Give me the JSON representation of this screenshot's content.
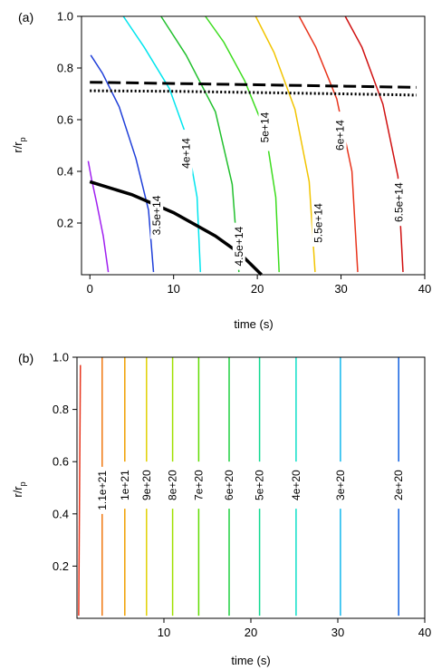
{
  "chart_data": [
    {
      "type": "line",
      "panel_label": "(a)",
      "xlabel": "time (s)",
      "ylabel": "r/r",
      "ylabel_subscript": "p",
      "xlim": [
        -1,
        40
      ],
      "ylim": [
        0,
        1.0
      ],
      "xticks": [
        0,
        10,
        20,
        30,
        40
      ],
      "xtick_labels": [
        "0",
        "10",
        "20",
        "30",
        "40"
      ],
      "yticks": [
        0.2,
        0.4,
        0.6,
        0.8,
        1.0
      ],
      "ytick_labels": [
        "0.2",
        "0.4",
        "0.6",
        "0.8",
        "1.0"
      ],
      "grid": false,
      "contours": [
        {
          "label": "",
          "color": "#a020f0",
          "x": [
            -0.2,
            0.2,
            0.8,
            1.6,
            2.2
          ],
          "y": [
            0.44,
            0.37,
            0.28,
            0.15,
            0.01
          ],
          "label_at": null
        },
        {
          "label": "3.5e+14",
          "color": "#1f3fd9",
          "x": [
            0.1,
            1.5,
            3.5,
            5.5,
            7.0,
            7.6
          ],
          "y": [
            0.85,
            0.78,
            0.65,
            0.45,
            0.25,
            0.01
          ],
          "label_at": [
            8.0,
            0.23
          ]
        },
        {
          "label": "4e+14",
          "color": "#00e5ee",
          "x": [
            4.0,
            6.5,
            9.5,
            11.5,
            12.8,
            13.2
          ],
          "y": [
            1.0,
            0.88,
            0.72,
            0.54,
            0.3,
            0.01
          ],
          "label_at": [
            11.5,
            0.47
          ]
        },
        {
          "label": "4.5e+14",
          "color": "#22c02e",
          "x": [
            8.5,
            11.5,
            15.0,
            17.0,
            17.8
          ],
          "y": [
            1.0,
            0.85,
            0.63,
            0.35,
            0.01
          ],
          "label_at": [
            17.8,
            0.11
          ]
        },
        {
          "label": "5e+14",
          "color": "#3cdc1e",
          "x": [
            13.8,
            16.0,
            18.5,
            21.0,
            22.2,
            22.6
          ],
          "y": [
            1.0,
            0.9,
            0.75,
            0.55,
            0.3,
            0.01
          ],
          "label_at": [
            20.9,
            0.57
          ]
        },
        {
          "label": "5.5e+14",
          "color": "#f2c400",
          "x": [
            19.8,
            22.0,
            24.5,
            26.2,
            26.9
          ],
          "y": [
            1.0,
            0.86,
            0.64,
            0.36,
            0.01
          ],
          "label_at": [
            27.3,
            0.2
          ]
        },
        {
          "label": "6e+14",
          "color": "#e8341c",
          "x": [
            25.0,
            27.0,
            29.5,
            31.3,
            32.0
          ],
          "y": [
            1.0,
            0.88,
            0.68,
            0.4,
            0.01
          ],
          "label_at": [
            29.9,
            0.54
          ]
        },
        {
          "label": "6.5e+14",
          "color": "#d01010",
          "x": [
            30.5,
            32.5,
            35.0,
            36.8,
            37.4
          ],
          "y": [
            1.0,
            0.88,
            0.66,
            0.38,
            0.01
          ],
          "label_at": [
            36.9,
            0.28
          ]
        }
      ],
      "overlay_lines": [
        {
          "style": "dashed",
          "color": "#000000",
          "x": [
            0,
            10,
            20,
            30,
            39
          ],
          "y": [
            0.745,
            0.74,
            0.735,
            0.73,
            0.725
          ]
        },
        {
          "style": "dotted",
          "color": "#000000",
          "x": [
            0,
            10,
            20,
            30,
            39
          ],
          "y": [
            0.712,
            0.71,
            0.705,
            0.7,
            0.695
          ]
        },
        {
          "style": "solid-thick",
          "color": "#000000",
          "x": [
            0,
            5,
            10,
            15,
            18,
            20.5
          ],
          "y": [
            0.36,
            0.31,
            0.24,
            0.15,
            0.08,
            0.0
          ]
        }
      ]
    },
    {
      "type": "line",
      "panel_label": "(b)",
      "xlabel": "time (s)",
      "ylabel": "r/r",
      "ylabel_subscript": "p",
      "xlim": [
        0,
        40
      ],
      "ylim": [
        0,
        1.0
      ],
      "xticks": [
        10,
        20,
        30,
        40
      ],
      "xtick_labels": [
        "10",
        "20",
        "30",
        "40"
      ],
      "yticks": [
        0.2,
        0.4,
        0.6,
        0.8,
        1.0
      ],
      "ytick_labels": [
        "0.2",
        "0.4",
        "0.6",
        "0.8",
        "1.0"
      ],
      "grid": false,
      "contours": [
        {
          "label": "",
          "color": "#e8341c",
          "x": [
            0.4,
            0.2
          ],
          "y": [
            0.97,
            0.01
          ],
          "label_at": null
        },
        {
          "label": "1.1e+21",
          "color": "#f07810",
          "x": [
            2.9,
            2.9
          ],
          "y": [
            1.0,
            0.01
          ],
          "label_at": [
            2.9,
            0.49
          ]
        },
        {
          "label": "1e+21",
          "color": "#f0a000",
          "x": [
            5.5,
            5.5
          ],
          "y": [
            1.0,
            0.01
          ],
          "label_at": [
            5.5,
            0.51
          ]
        },
        {
          "label": "9e+20",
          "color": "#e0d000",
          "x": [
            8.0,
            8.0
          ],
          "y": [
            1.0,
            0.01
          ],
          "label_at": [
            8.0,
            0.51
          ]
        },
        {
          "label": "8e+20",
          "color": "#a0e000",
          "x": [
            11.0,
            11.0
          ],
          "y": [
            1.0,
            0.01
          ],
          "label_at": [
            11.0,
            0.51
          ]
        },
        {
          "label": "7e+20",
          "color": "#60dc00",
          "x": [
            14.0,
            14.0
          ],
          "y": [
            1.0,
            0.01
          ],
          "label_at": [
            14.0,
            0.51
          ]
        },
        {
          "label": "6e+20",
          "color": "#20d040",
          "x": [
            17.5,
            17.5
          ],
          "y": [
            1.0,
            0.01
          ],
          "label_at": [
            17.5,
            0.51
          ]
        },
        {
          "label": "5e+20",
          "color": "#10d890",
          "x": [
            21.0,
            21.0
          ],
          "y": [
            1.0,
            0.01
          ],
          "label_at": [
            21.0,
            0.51
          ]
        },
        {
          "label": "4e+20",
          "color": "#10e0c8",
          "x": [
            25.2,
            25.2
          ],
          "y": [
            1.0,
            0.01
          ],
          "label_at": [
            25.2,
            0.51
          ]
        },
        {
          "label": "3e+20",
          "color": "#10b8ee",
          "x": [
            30.3,
            30.3
          ],
          "y": [
            1.0,
            0.01
          ],
          "label_at": [
            30.3,
            0.51
          ]
        },
        {
          "label": "2e+20",
          "color": "#1060e0",
          "x": [
            37.0,
            37.0
          ],
          "y": [
            1.0,
            0.01
          ],
          "label_at": [
            37.0,
            0.51
          ]
        }
      ],
      "overlay_lines": []
    }
  ]
}
